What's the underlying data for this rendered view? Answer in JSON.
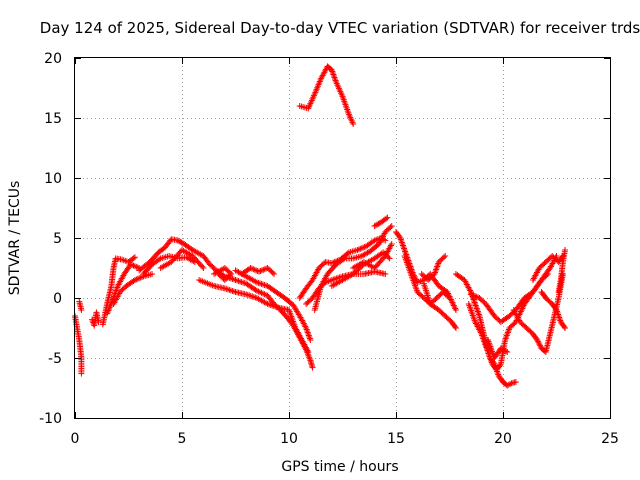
{
  "chart_data": {
    "type": "scatter",
    "title": "Day 124 of 2025, Sidereal Day-to-day VTEC variation (SDTVAR) for receiver trds",
    "xlabel": "GPS time / hours",
    "ylabel": "SDTVAR / TECUs",
    "xlim": [
      0,
      25
    ],
    "ylim": [
      -10,
      20
    ],
    "xticks": [
      0,
      5,
      10,
      15,
      20,
      25
    ],
    "yticks": [
      -10,
      -5,
      0,
      5,
      10,
      15,
      20
    ],
    "grid": true,
    "marker": "+",
    "series": [
      {
        "name": "SDTVAR",
        "color": "#ff0000",
        "tracks": [
          [
            [
              0.0,
              -1.5
            ],
            [
              0.1,
              -2.5
            ],
            [
              0.2,
              -3.5
            ],
            [
              0.3,
              -5.0
            ],
            [
              0.3,
              -6.3
            ]
          ],
          [
            [
              0.2,
              -0.3
            ],
            [
              0.3,
              -1.0
            ]
          ],
          [
            [
              0.8,
              -1.8
            ],
            [
              0.9,
              -2.3
            ],
            [
              1.0,
              -1.2
            ],
            [
              1.1,
              -2.0
            ]
          ],
          [
            [
              1.3,
              -2.2
            ],
            [
              1.5,
              -0.5
            ],
            [
              1.7,
              1.0
            ],
            [
              1.8,
              2.5
            ],
            [
              1.9,
              3.3
            ],
            [
              2.2,
              3.2
            ],
            [
              2.5,
              3.0
            ],
            [
              2.8,
              3.4
            ]
          ],
          [
            [
              1.5,
              -1.3
            ],
            [
              1.8,
              0.0
            ],
            [
              2.0,
              1.0
            ],
            [
              2.3,
              2.0
            ],
            [
              2.6,
              2.8
            ],
            [
              3.0,
              2.5
            ]
          ],
          [
            [
              1.8,
              -0.5
            ],
            [
              2.1,
              0.5
            ],
            [
              2.4,
              1.0
            ],
            [
              2.8,
              1.5
            ],
            [
              3.2,
              1.8
            ],
            [
              3.6,
              2.0
            ]
          ],
          [
            [
              3.0,
              2.3
            ],
            [
              3.5,
              3.0
            ],
            [
              3.9,
              3.8
            ],
            [
              4.2,
              4.2
            ],
            [
              4.5,
              4.9
            ],
            [
              4.8,
              4.8
            ],
            [
              5.1,
              4.5
            ],
            [
              5.5,
              4.0
            ],
            [
              6.0,
              3.5
            ],
            [
              6.3,
              2.8
            ],
            [
              6.6,
              2.3
            ],
            [
              7.0,
              1.8
            ],
            [
              7.5,
              1.5
            ],
            [
              8.0,
              1.2
            ],
            [
              8.5,
              0.6
            ],
            [
              9.0,
              0.2
            ],
            [
              9.3,
              -0.5
            ],
            [
              9.6,
              -1.0
            ],
            [
              9.9,
              -1.6
            ],
            [
              10.2,
              -2.3
            ],
            [
              10.5,
              -3.3
            ],
            [
              10.8,
              -4.3
            ],
            [
              11.0,
              -5.2
            ],
            [
              11.1,
              -5.8
            ]
          ],
          [
            [
              3.2,
              2.0
            ],
            [
              3.6,
              2.8
            ],
            [
              4.0,
              3.3
            ],
            [
              4.4,
              3.5
            ],
            [
              4.8,
              3.3
            ],
            [
              5.2,
              3.4
            ],
            [
              5.6,
              3.0
            ]
          ],
          [
            [
              4.0,
              2.5
            ],
            [
              4.5,
              3.0
            ],
            [
              5.0,
              4.0
            ],
            [
              5.5,
              3.5
            ],
            [
              6.0,
              2.5
            ]
          ],
          [
            [
              5.8,
              1.5
            ],
            [
              6.5,
              1.0
            ],
            [
              7.0,
              0.8
            ],
            [
              7.5,
              0.5
            ],
            [
              8.0,
              0.3
            ],
            [
              8.5,
              0.0
            ],
            [
              9.0,
              -0.5
            ],
            [
              9.5,
              -0.8
            ],
            [
              10.0,
              -1.0
            ],
            [
              10.3,
              -2.5
            ],
            [
              10.6,
              -3.5
            ],
            [
              10.9,
              -4.5
            ]
          ],
          [
            [
              6.5,
              2.0
            ],
            [
              7.0,
              2.5
            ],
            [
              7.3,
              2.0
            ],
            [
              7.0,
              1.5
            ],
            [
              6.7,
              2.0
            ]
          ],
          [
            [
              7.8,
              2.0
            ],
            [
              8.2,
              2.5
            ],
            [
              8.6,
              2.2
            ],
            [
              9.0,
              2.5
            ],
            [
              9.3,
              2.0
            ]
          ],
          [
            [
              7.5,
              2.3
            ],
            [
              8.0,
              1.8
            ],
            [
              8.5,
              1.3
            ],
            [
              9.0,
              1.0
            ],
            [
              9.4,
              0.5
            ],
            [
              9.8,
              0.0
            ],
            [
              10.2,
              -0.6
            ],
            [
              10.5,
              -1.5
            ],
            [
              10.8,
              -2.5
            ],
            [
              11.0,
              -3.5
            ]
          ],
          [
            [
              10.5,
              0.0
            ],
            [
              10.8,
              0.8
            ],
            [
              11.1,
              1.5
            ],
            [
              11.4,
              2.5
            ],
            [
              11.7,
              3.0
            ],
            [
              12.0,
              2.9
            ],
            [
              12.4,
              3.2
            ],
            [
              12.8,
              3.8
            ],
            [
              13.2,
              4.0
            ],
            [
              13.6,
              4.3
            ],
            [
              14.0,
              4.8
            ],
            [
              14.3,
              5.0
            ],
            [
              14.5,
              4.8
            ]
          ],
          [
            [
              10.8,
              -0.5
            ],
            [
              11.1,
              0.0
            ],
            [
              11.4,
              0.8
            ],
            [
              11.7,
              1.3
            ],
            [
              12.0,
              1.5
            ],
            [
              12.5,
              1.8
            ],
            [
              13.0,
              2.0
            ],
            [
              13.5,
              2.0
            ],
            [
              14.0,
              2.2
            ],
            [
              14.5,
              2.0
            ]
          ],
          [
            [
              11.2,
              -1.0
            ],
            [
              11.5,
              1.0
            ],
            [
              11.8,
              2.0
            ],
            [
              12.2,
              2.8
            ],
            [
              12.6,
              3.3
            ],
            [
              13.0,
              3.3
            ],
            [
              13.4,
              3.5
            ],
            [
              13.8,
              3.9
            ],
            [
              14.2,
              4.5
            ],
            [
              14.5,
              5.5
            ],
            [
              14.8,
              6.0
            ]
          ],
          [
            [
              12.0,
              1.0
            ],
            [
              12.5,
              1.5
            ],
            [
              13.0,
              2.0
            ],
            [
              13.5,
              2.8
            ],
            [
              14.0,
              3.3
            ],
            [
              14.4,
              3.8
            ],
            [
              14.7,
              3.3
            ]
          ],
          [
            [
              13.0,
              2.5
            ],
            [
              13.5,
              3.0
            ],
            [
              14.0,
              2.5
            ],
            [
              14.5,
              3.5
            ],
            [
              14.8,
              4.5
            ]
          ],
          [
            [
              14.0,
              6.0
            ],
            [
              14.3,
              6.3
            ],
            [
              14.6,
              6.7
            ]
          ],
          [
            [
              10.5,
              16.0
            ],
            [
              10.9,
              15.8
            ],
            [
              11.2,
              17.0
            ],
            [
              11.5,
              18.3
            ],
            [
              11.8,
              19.3
            ],
            [
              12.0,
              19.0
            ],
            [
              12.2,
              18.0
            ],
            [
              12.5,
              16.8
            ],
            [
              12.8,
              15.3
            ],
            [
              13.0,
              14.5
            ]
          ],
          [
            [
              15.0,
              5.5
            ],
            [
              15.2,
              5.0
            ],
            [
              15.4,
              4.0
            ],
            [
              15.6,
              3.0
            ],
            [
              15.8,
              2.0
            ],
            [
              16.0,
              1.3
            ],
            [
              16.3,
              1.5
            ],
            [
              16.6,
              2.0
            ],
            [
              17.0,
              1.0
            ],
            [
              17.4,
              0.5
            ],
            [
              17.8,
              -1.0
            ]
          ],
          [
            [
              15.4,
              3.5
            ],
            [
              15.7,
              2.0
            ],
            [
              16.0,
              0.5
            ],
            [
              16.3,
              0.0
            ],
            [
              16.6,
              -0.5
            ],
            [
              17.0,
              -1.0
            ],
            [
              17.3,
              -1.5
            ],
            [
              17.6,
              -2.0
            ],
            [
              17.8,
              -2.5
            ]
          ],
          [
            [
              16.2,
              2.0
            ],
            [
              16.5,
              1.5
            ],
            [
              16.8,
              2.0
            ],
            [
              17.0,
              3.0
            ],
            [
              17.3,
              3.5
            ]
          ],
          [
            [
              16.3,
              1.2
            ],
            [
              16.6,
              -0.5
            ],
            [
              16.9,
              0.0
            ],
            [
              17.2,
              0.5
            ],
            [
              17.5,
              0.0
            ]
          ],
          [
            [
              17.8,
              2.0
            ],
            [
              18.2,
              1.5
            ],
            [
              18.5,
              0.5
            ],
            [
              18.7,
              -0.5
            ],
            [
              18.9,
              -1.5
            ],
            [
              19.1,
              -3.0
            ],
            [
              19.3,
              -4.5
            ],
            [
              19.5,
              -5.5
            ],
            [
              19.7,
              -6.0
            ],
            [
              19.9,
              -5.5
            ],
            [
              20.1,
              -3.5
            ],
            [
              20.3,
              -2.5
            ],
            [
              20.6,
              -2.0
            ],
            [
              21.0,
              -0.5
            ],
            [
              21.4,
              0.5
            ],
            [
              21.8,
              1.5
            ],
            [
              22.1,
              2.0
            ]
          ],
          [
            [
              18.4,
              -0.5
            ],
            [
              18.7,
              -2.0
            ],
            [
              19.0,
              -3.0
            ],
            [
              19.2,
              -4.0
            ],
            [
              19.4,
              -5.0
            ],
            [
              19.6,
              -5.5
            ],
            [
              19.8,
              -6.5
            ],
            [
              20.0,
              -7.0
            ],
            [
              20.2,
              -7.3
            ],
            [
              20.4,
              -7.1
            ],
            [
              20.6,
              -7.0
            ]
          ],
          [
            [
              18.5,
              0.3
            ],
            [
              18.9,
              0.0
            ],
            [
              19.2,
              -0.5
            ],
            [
              19.6,
              -1.5
            ],
            [
              19.9,
              -2.0
            ],
            [
              20.3,
              -1.5
            ],
            [
              20.6,
              -1.0
            ],
            [
              21.0,
              0.0
            ],
            [
              21.4,
              0.5
            ],
            [
              21.8,
              1.5
            ],
            [
              22.2,
              2.5
            ],
            [
              22.5,
              3.5
            ]
          ],
          [
            [
              19.3,
              -3.5
            ],
            [
              19.6,
              -5.0
            ],
            [
              19.9,
              -4.2
            ],
            [
              20.2,
              -4.5
            ]
          ],
          [
            [
              20.5,
              -1.0
            ],
            [
              20.8,
              -2.0
            ],
            [
              21.1,
              -2.5
            ],
            [
              21.4,
              -3.0
            ],
            [
              21.6,
              -3.5
            ],
            [
              21.8,
              -4.2
            ],
            [
              22.0,
              -4.5
            ],
            [
              22.2,
              -3.0
            ],
            [
              22.4,
              -1.5
            ],
            [
              22.6,
              0.0
            ],
            [
              22.8,
              2.0
            ]
          ],
          [
            [
              21.4,
              1.5
            ],
            [
              21.7,
              2.5
            ],
            [
              22.0,
              3.0
            ],
            [
              22.3,
              3.5
            ],
            [
              22.6,
              3.0
            ],
            [
              22.8,
              3.5
            ]
          ],
          [
            [
              21.8,
              0.5
            ],
            [
              22.0,
              0.0
            ],
            [
              22.3,
              -0.5
            ],
            [
              22.5,
              -1.0
            ],
            [
              22.7,
              -2.0
            ],
            [
              22.9,
              -2.5
            ]
          ],
          [
            [
              22.6,
              0.5
            ],
            [
              22.7,
              1.5
            ],
            [
              22.8,
              3.0
            ],
            [
              22.9,
              4.0
            ]
          ]
        ]
      }
    ]
  }
}
